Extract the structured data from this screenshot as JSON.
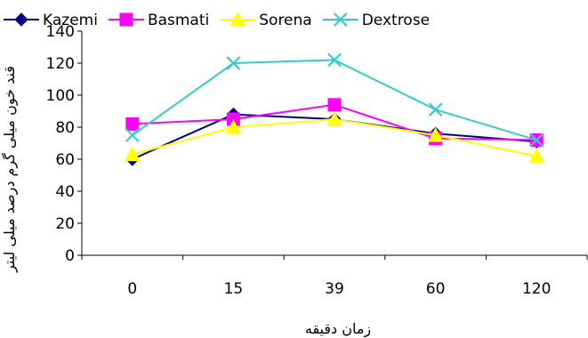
{
  "chart_data": {
    "type": "line",
    "title": "",
    "xlabel": "زمان دقیقه",
    "ylabel": "قند خون میلی گرم درصد میلی لیتر",
    "categories": [
      "0",
      "15",
      "39",
      "60",
      "120"
    ],
    "ylim": [
      0,
      140
    ],
    "yticks": [
      0,
      20,
      40,
      60,
      80,
      100,
      120,
      140
    ],
    "grid": false,
    "legend_position": "top",
    "series": [
      {
        "name": "Kazemi",
        "values": [
          60,
          88,
          85,
          76,
          71
        ],
        "color": "#000080",
        "marker": "diamond"
      },
      {
        "name": "Basmati",
        "values": [
          82,
          85,
          94,
          73,
          72
        ],
        "color": "#FF00FF",
        "marker": "square"
      },
      {
        "name": "Sorena",
        "values": [
          63,
          80,
          85,
          75,
          62
        ],
        "color": "#FFFF00",
        "marker": "triangle"
      },
      {
        "name": "Dextrose",
        "values": [
          75,
          120,
          122,
          91,
          72
        ],
        "color": "#33CCCC",
        "marker": "x"
      }
    ]
  }
}
